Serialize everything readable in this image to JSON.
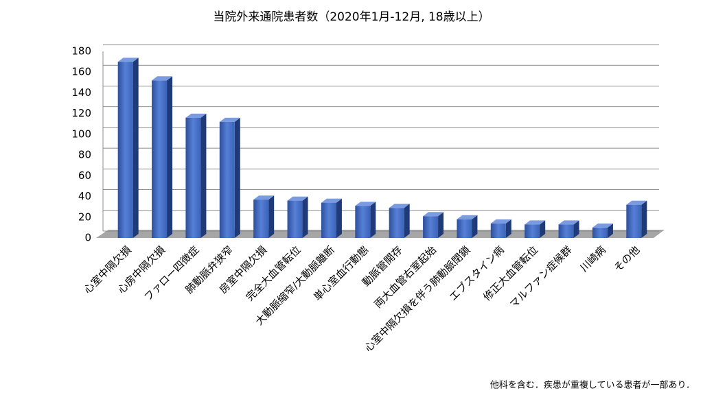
{
  "chart_data": {
    "type": "bar3d",
    "title": "当院外来通院患者数（2020年1月-12月, 18歳以上）",
    "categories": [
      "心室中隔欠損",
      "心房中隔欠損",
      "ファロー四徴症",
      "肺動脈弁狭窄",
      "房室中隔欠損",
      "完全大血管転位",
      "大動脈縮窄/大動脈離断",
      "単心室血行動態",
      "動脈管開存",
      "両大血管右室起始",
      "心室中隔欠損を伴う肺動脈閉鎖",
      "エブスタイン病",
      "修正大血管転位",
      "マルファン症候群",
      "川崎病",
      "その他"
    ],
    "values": [
      170,
      152,
      116,
      112,
      37,
      36,
      34,
      31,
      29,
      21,
      18,
      14,
      13,
      13,
      10,
      32
    ],
    "color": "#4472c4",
    "ylim": [
      0,
      180
    ],
    "yticks": [
      0,
      20,
      40,
      60,
      80,
      100,
      120,
      140,
      160,
      180
    ],
    "grid": true,
    "footnote": "他科を含む．疾患が重複している患者が一部あり．"
  }
}
